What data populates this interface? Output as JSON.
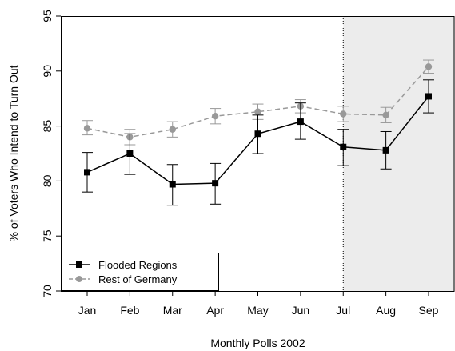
{
  "chart_data": {
    "type": "line",
    "title": "",
    "xlabel": "Monthly Polls 2002",
    "ylabel": "% of Voters Who Intend to Turn Out",
    "categories": [
      "Jan",
      "Feb",
      "Mar",
      "Apr",
      "May",
      "Jun",
      "Jul",
      "Aug",
      "Sep"
    ],
    "ylim": [
      70,
      95
    ],
    "yticks": [
      70,
      75,
      80,
      85,
      90,
      95
    ],
    "grid": false,
    "legend_position": "bottom-left",
    "shaded_region": {
      "from": "Jul",
      "to": "Sep",
      "color": "#ececec"
    },
    "series": [
      {
        "name": "Flooded Regions",
        "color": "#000000",
        "line_style": "solid",
        "marker": "square",
        "values": [
          80.8,
          82.5,
          79.7,
          79.8,
          84.3,
          85.4,
          83.1,
          82.8,
          87.7
        ],
        "lower": [
          79.0,
          80.6,
          77.8,
          77.9,
          82.5,
          83.8,
          81.4,
          81.1,
          86.2
        ],
        "upper": [
          82.6,
          84.3,
          81.5,
          81.6,
          86.0,
          87.1,
          84.7,
          84.5,
          89.2
        ]
      },
      {
        "name": "Rest of Germany",
        "color": "#999999",
        "line_style": "dashed",
        "marker": "circle",
        "values": [
          84.8,
          84.0,
          84.7,
          85.9,
          86.3,
          86.8,
          86.1,
          86.0,
          90.4
        ],
        "lower": [
          84.2,
          83.3,
          84.0,
          85.2,
          85.6,
          86.2,
          85.4,
          85.3,
          89.8
        ],
        "upper": [
          85.5,
          84.7,
          85.4,
          86.6,
          87.0,
          87.4,
          86.8,
          86.7,
          91.0
        ]
      }
    ]
  }
}
